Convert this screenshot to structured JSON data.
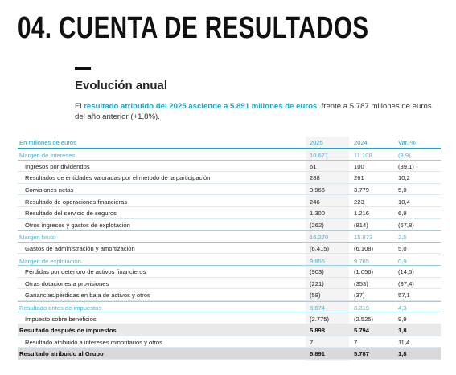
{
  "header": {
    "title": "04. CUENTA DE RESULTADOS",
    "subtitle": "Evolución anual"
  },
  "intro": {
    "parts": [
      "El ",
      "resultado atribuido del 2025 asciende a 5.891 millones de euros",
      ", frente a 5.787 millones de euros del año anterior (+1,8%)."
    ]
  },
  "table": {
    "columns": [
      "En millones de euros",
      "2025",
      "2024",
      "Var. %"
    ],
    "rows": [
      [
        "Margen de intereses",
        "10.671",
        "11.108",
        "(3,9)"
      ],
      [
        "Ingresos por dividendos",
        "61",
        "100",
        "(39,1)"
      ],
      [
        "Resultados de entidades valoradas por el método de la participación",
        "288",
        "261",
        "10,2"
      ],
      [
        "Comisiones netas",
        "3.966",
        "3.779",
        "5,0"
      ],
      [
        "Resultado de operaciones financieras",
        "246",
        "223",
        "10,4"
      ],
      [
        "Resultado del servicio de seguros",
        "1.300",
        "1.216",
        "6,9"
      ],
      [
        "Otros ingresos y gastos de explotación",
        "(262)",
        "(814)",
        "(67,8)"
      ],
      [
        "Margen bruto",
        "16.270",
        "15.873",
        "2,5"
      ],
      [
        "Gastos de administración y amortización",
        "(6.415)",
        "(6.108)",
        "5,0"
      ],
      [
        "Margen de explotación",
        "9.855",
        "9.765",
        "0,9"
      ],
      [
        "Pérdidas por deterioro de activos financieros",
        "(903)",
        "(1.056)",
        "(14,5)"
      ],
      [
        "Otras dotaciones a provisiones",
        "(221)",
        "(353)",
        "(37,4)"
      ],
      [
        "Ganancias/pérdidas en baja de activos y otros",
        "(58)",
        "(37)",
        "57,1"
      ],
      [
        "Resultado antes de impuestos",
        "8.674",
        "8.319",
        "4,3"
      ],
      [
        "Impuesto sobre beneficios",
        "(2.775)",
        "(2.525)",
        "9,9"
      ],
      [
        "Resultado después de impuestos",
        "5.898",
        "5.794",
        "1,8"
      ],
      [
        "Resultado atribuido a intereses minoritarios y otros",
        "7",
        "7",
        "11,4"
      ],
      [
        "Resultado atribuido al Grupo",
        "5.891",
        "5.787",
        "1,8"
      ]
    ]
  }
}
